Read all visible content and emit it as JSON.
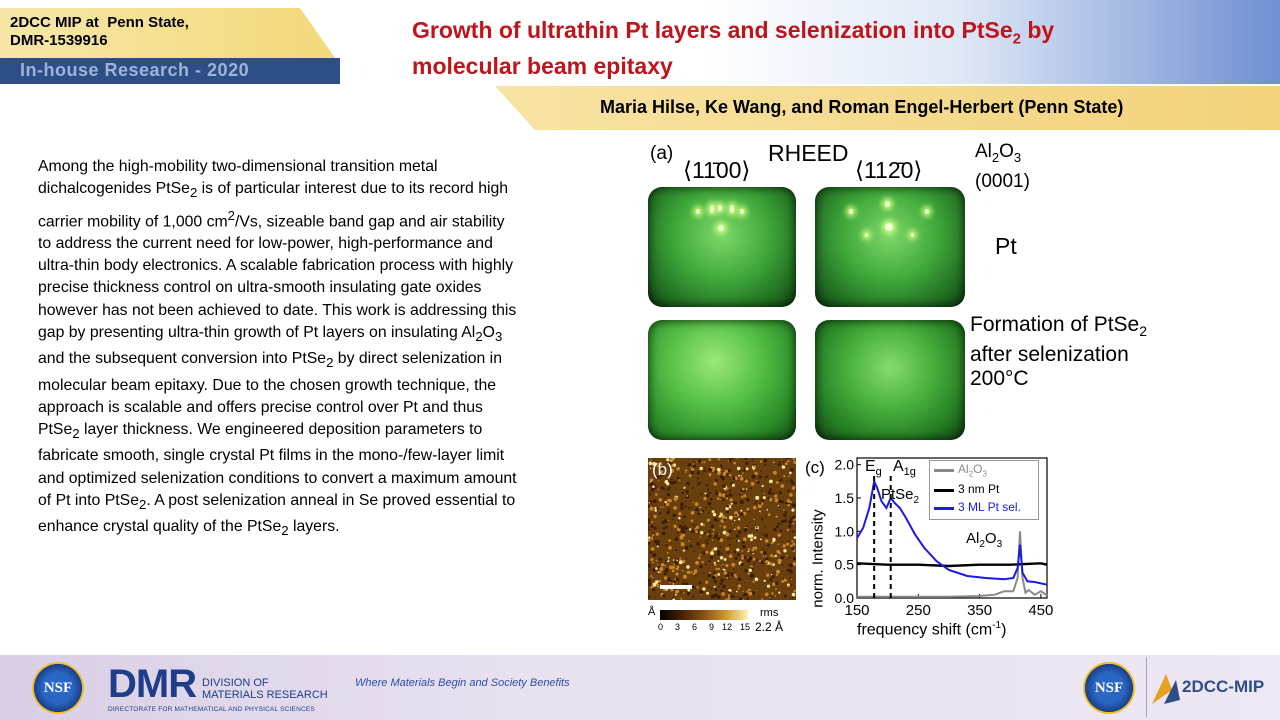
{
  "header": {
    "badge_line1": "2DCC MIP at  Penn State,",
    "badge_line2": "DMR-1539916",
    "badge_sub": "In-house Research - 2020",
    "title_part1": "Growth of ultrathin Pt layers and selenization into PtSe",
    "title_sub": "2",
    "title_part2": " by",
    "title_line2": "molecular beam epitaxy",
    "authors": "Maria Hilse, Ke Wang, and Roman Engel-Herbert (Penn State)"
  },
  "body": {
    "segments": [
      "Among the high-mobility two-dimensional transition metal dichalcogenides PtSe",
      "2",
      " is of particular interest due to its record high carrier mobility of 1,000 cm",
      "2",
      "/Vs, sizeable band gap and air stability to address the current need for low-power, high-performance and ultra-thin  body electronics. A scalable fabrication process with highly precise thickness control on ultra-smooth insulating gate oxides however has not been achieved to date. This work is addressing this gap by presenting ultra-thin growth of Pt layers on insulating Al",
      "2",
      "O",
      "3",
      " and the subsequent conversion into PtSe",
      "2",
      " by direct selenization in molecular beam epitaxy. Due to the chosen growth technique, the approach is scalable and offers precise control over Pt and thus PtSe",
      "2",
      " layer thickness. We engineered deposition parameters to fabricate smooth, single crystal Pt films in the mono-/few-layer limit and optimized selenization conditions to convert a maximum amount of Pt into PtSe",
      "2",
      ". A post selenization anneal in Se proved essential to enhance crystal quality of the PtSe",
      "2",
      " layers."
    ]
  },
  "figure": {
    "label_a": "(a)",
    "rheed": "RHEED",
    "dir1": "⟨11̄00⟩",
    "dir2": "⟨112̄0⟩",
    "substrate_al": "Al",
    "substrate_sub2": "2",
    "substrate_o": "O",
    "substrate_sub3": "3",
    "substrate_orient": "(0001)",
    "pt": "Pt",
    "formation_a": "Formation of PtSe",
    "formation_sub": "2",
    "formation_b": "after selenization",
    "temp": "200°C",
    "label_b": "(b)",
    "afm_unit": "Å",
    "afm_ticks": [
      "0",
      "3",
      "6",
      "9",
      "12",
      "15"
    ],
    "rms_label": "rms",
    "rms_value": "2.2 Å",
    "label_c": "(c)",
    "peak_e": "E",
    "peak_e_sub": "g",
    "peak_a": "A",
    "peak_a_sub": "1g",
    "peak_ptse": "PtSe",
    "peak_ptse_sub": "2",
    "peak_al": "Al",
    "peak_al_sub2": "2",
    "peak_al_o": "O",
    "peak_al_sub3": "3"
  },
  "chart_data": {
    "type": "line",
    "xlabel": "frequency shift (cm",
    "xlabel_sup": "-1",
    "xlabel_end": ")",
    "ylabel": "norm. Intensity",
    "xlim": [
      150,
      460
    ],
    "ylim": [
      0,
      2.1
    ],
    "xticks": [
      "150",
      "250",
      "350",
      "450"
    ],
    "yticks": [
      "0.0",
      "0.5",
      "1.0",
      "1.5",
      "2.0"
    ],
    "legend_placement": "top-right",
    "series": [
      {
        "name": "Al2O3",
        "legend_a": "Al",
        "legend_s1": "2",
        "legend_b": "O",
        "legend_s2": "3",
        "color": "#8a8a8a",
        "x": [
          150,
          200,
          250,
          300,
          350,
          375,
          390,
          405,
          412,
          416,
          420,
          425,
          430,
          440,
          450,
          460
        ],
        "y": [
          0.02,
          0.02,
          0.02,
          0.02,
          0.03,
          0.05,
          0.1,
          0.1,
          0.3,
          1.0,
          0.3,
          0.08,
          0.12,
          0.05,
          0.1,
          0.04
        ]
      },
      {
        "name": "3 nm Pt",
        "color": "#000000",
        "x": [
          150,
          200,
          250,
          300,
          350,
          400,
          450,
          460
        ],
        "y": [
          0.52,
          0.5,
          0.5,
          0.48,
          0.5,
          0.5,
          0.52,
          0.5
        ]
      },
      {
        "name": "3 ML Pt sel.",
        "color": "#1a1ae6",
        "x": [
          150,
          160,
          170,
          178,
          183,
          190,
          198,
          205,
          212,
          220,
          230,
          245,
          260,
          280,
          300,
          330,
          360,
          390,
          405,
          412,
          416,
          420,
          428,
          440,
          460
        ],
        "y": [
          0.9,
          1.05,
          1.35,
          1.75,
          1.65,
          1.45,
          1.35,
          1.5,
          1.42,
          1.35,
          1.2,
          0.95,
          0.75,
          0.55,
          0.42,
          0.33,
          0.3,
          0.28,
          0.3,
          0.45,
          0.8,
          0.38,
          0.25,
          0.24,
          0.2
        ]
      }
    ]
  },
  "footer": {
    "nsf": "NSF",
    "dmr": "DMR",
    "division_line1": "DIVISION OF",
    "division_line2": "MATERIALS RESEARCH",
    "directorate": "DIRECTORATE FOR MATHEMATICAL AND PHYSICAL SCIENCES",
    "tagline": "Where Materials Begin and Society Benefits",
    "brand": "2DCC-MIP"
  }
}
